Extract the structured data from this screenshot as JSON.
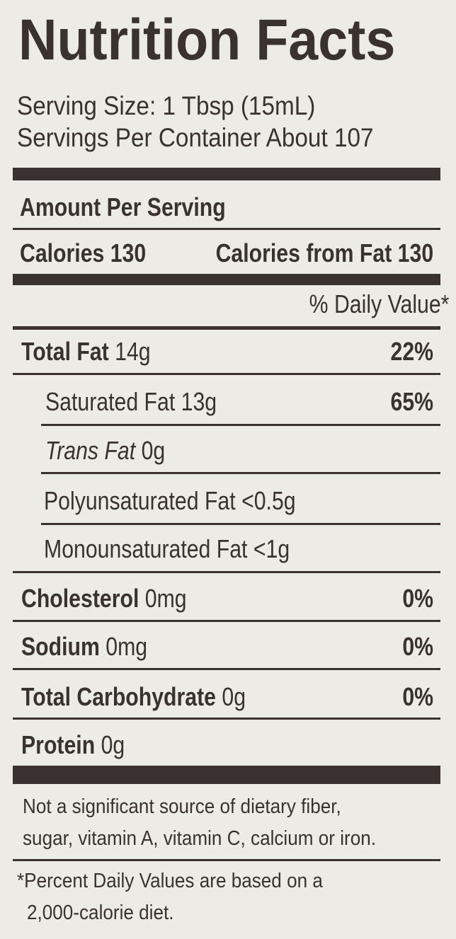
{
  "title": "Nutrition Facts",
  "serving_size": "Serving Size: 1 Tbsp (15mL)",
  "servings_per_container": "Servings Per Container About 107",
  "amount_per_serving": "Amount Per Serving",
  "calories": "Calories 130",
  "calories_from_fat": "Calories from Fat 130",
  "daily_value_header": "% Daily Value*",
  "nutrients": [
    {
      "label": "Total Fat",
      "amount": "14g",
      "dv": "22%"
    },
    {
      "label": "Saturated Fat",
      "amount": "13g",
      "dv": "65%"
    },
    {
      "label": "Trans Fat",
      "amount": "0g",
      "dv": ""
    },
    {
      "label": "Polyunsaturated Fat",
      "amount": "<0.5g",
      "dv": ""
    },
    {
      "label": "Monounsaturated Fat",
      "amount": "<1g",
      "dv": ""
    },
    {
      "label": "Cholesterol",
      "amount": "0mg",
      "dv": "0%"
    },
    {
      "label": "Sodium",
      "amount": "0mg",
      "dv": "0%"
    },
    {
      "label": "Total Carbohydrate",
      "amount": "0g",
      "dv": "0%"
    },
    {
      "label": "Protein",
      "amount": "0g",
      "dv": ""
    }
  ],
  "footnote_1": [
    "Not a significant source of dietary fiber,",
    "sugar, vitamin A, vitamin C, calcium or iron."
  ],
  "footnote_2": [
    "*Percent Daily Values are based on a",
    "2,000-calorie diet."
  ],
  "colors": {
    "ink": "#3a3230",
    "background": "#ecebe6"
  }
}
